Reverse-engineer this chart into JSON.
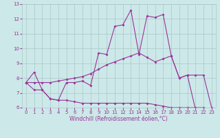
{
  "title": "",
  "xlabel": "Windchill (Refroidissement éolien,°C)",
  "background_color": "#cce8e8",
  "grid_color": "#aac8c8",
  "line_color": "#993399",
  "xlim": [
    -0.5,
    23.5
  ],
  "ylim": [
    6,
    13
  ],
  "xticks": [
    0,
    1,
    2,
    3,
    4,
    5,
    6,
    7,
    8,
    9,
    10,
    11,
    12,
    13,
    14,
    15,
    16,
    17,
    18,
    19,
    20,
    21,
    22,
    23
  ],
  "yticks": [
    6,
    7,
    8,
    9,
    10,
    11,
    12,
    13
  ],
  "line1_x": [
    0,
    1,
    2,
    3,
    4,
    5,
    6,
    7,
    8,
    9,
    10,
    11,
    12,
    13,
    14,
    15,
    16,
    17,
    18,
    19,
    20,
    21,
    22,
    23
  ],
  "line1_y": [
    7.7,
    8.4,
    7.2,
    6.6,
    6.5,
    7.7,
    7.7,
    7.8,
    7.5,
    9.7,
    9.6,
    11.5,
    11.6,
    12.6,
    9.6,
    12.2,
    12.1,
    12.3,
    9.5,
    8.0,
    8.2,
    5.9,
    5.9,
    5.9
  ],
  "line2_x": [
    0,
    1,
    2,
    3,
    4,
    5,
    6,
    7,
    8,
    9,
    10,
    11,
    12,
    13,
    14,
    15,
    16,
    17,
    18,
    19,
    20,
    21,
    22,
    23
  ],
  "line2_y": [
    7.7,
    7.2,
    7.2,
    6.6,
    6.5,
    6.5,
    6.4,
    6.3,
    6.3,
    6.3,
    6.3,
    6.3,
    6.3,
    6.3,
    6.3,
    6.3,
    6.2,
    6.1,
    6.0,
    6.0,
    6.0,
    6.0,
    6.0,
    5.9
  ],
  "line3_x": [
    0,
    1,
    2,
    3,
    4,
    5,
    6,
    7,
    8,
    9,
    10,
    11,
    12,
    13,
    14,
    15,
    16,
    17,
    18,
    19,
    20,
    21,
    22,
    23
  ],
  "line3_y": [
    7.7,
    7.7,
    7.7,
    7.7,
    7.8,
    7.9,
    8.0,
    8.1,
    8.3,
    8.6,
    8.9,
    9.1,
    9.3,
    9.5,
    9.7,
    9.4,
    9.1,
    9.3,
    9.5,
    8.0,
    8.2,
    8.2,
    8.2,
    6.0
  ],
  "tick_fontsize": 5,
  "xlabel_fontsize": 5.5,
  "marker": "D",
  "markersize": 2.0,
  "linewidth": 0.8
}
